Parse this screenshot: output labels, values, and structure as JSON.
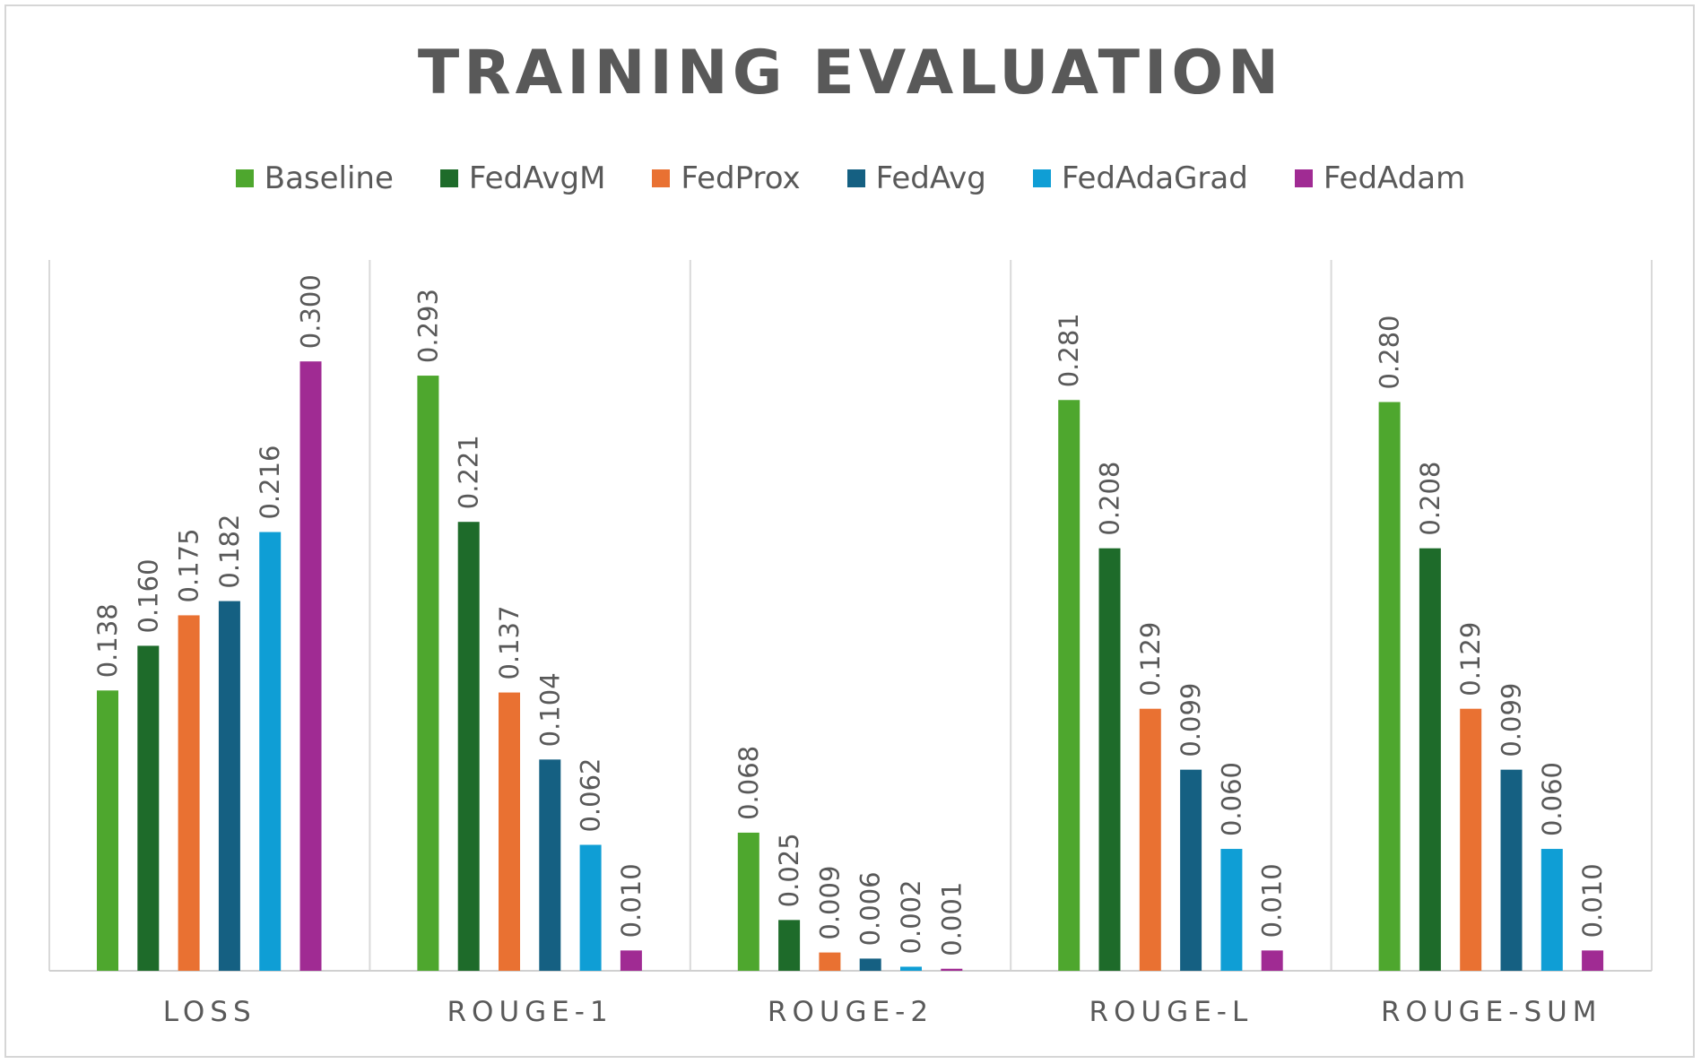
{
  "chart_data": {
    "type": "bar",
    "title": "TRAINING EVALUATION",
    "categories": [
      "LOSS",
      "ROUGE-1",
      "ROUGE-2",
      "ROUGE-L",
      "ROUGE-SUM"
    ],
    "series": [
      {
        "name": "Baseline",
        "color": "#4ea72e",
        "values": [
          0.138,
          0.293,
          0.068,
          0.281,
          0.28
        ],
        "labels": [
          "0.138",
          "0.293",
          "0.068",
          "0.281",
          "0.280"
        ]
      },
      {
        "name": "FedAvgM",
        "color": "#1e6b2a",
        "values": [
          0.16,
          0.221,
          0.025,
          0.208,
          0.208
        ],
        "labels": [
          "0.160",
          "0.221",
          "0.025",
          "0.208",
          "0.208"
        ]
      },
      {
        "name": "FedProx",
        "color": "#e97132",
        "values": [
          0.175,
          0.137,
          0.009,
          0.129,
          0.129
        ],
        "labels": [
          "0.175",
          "0.137",
          "0.009",
          "0.129",
          "0.129"
        ]
      },
      {
        "name": "FedAvg",
        "color": "#156082",
        "values": [
          0.182,
          0.104,
          0.006,
          0.099,
          0.099
        ],
        "labels": [
          "0.182",
          "0.104",
          "0.006",
          "0.099",
          "0.099"
        ]
      },
      {
        "name": "FedAdaGrad",
        "color": "#0f9ed5",
        "values": [
          0.216,
          0.062,
          0.002,
          0.06,
          0.06
        ],
        "labels": [
          "0.216",
          "0.062",
          "0.002",
          "0.060",
          "0.060"
        ]
      },
      {
        "name": "FedAdam",
        "color": "#a02b93",
        "values": [
          0.3,
          0.01,
          0.001,
          0.01,
          0.01
        ],
        "labels": [
          "0.300",
          "0.010",
          "0.001",
          "0.010",
          "0.010"
        ]
      }
    ],
    "ylim": [
      0,
      0.35
    ],
    "grid": false,
    "category_separators": true,
    "legend_position": "top",
    "data_labels": "rotated"
  }
}
